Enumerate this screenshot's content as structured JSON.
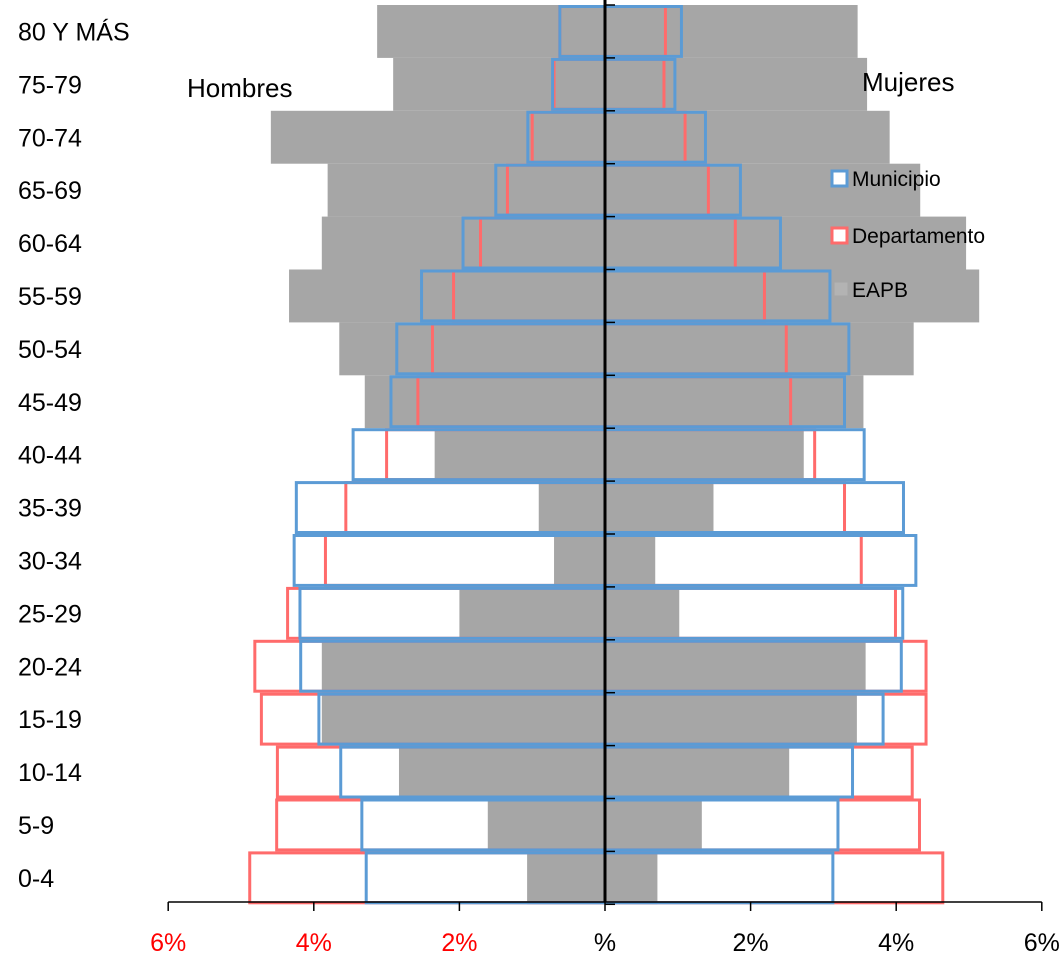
{
  "chart_data": {
    "type": "bar",
    "subtype": "population-pyramid",
    "categories": [
      "0-4",
      "5-9",
      "10-14",
      "15-19",
      "20-24",
      "25-29",
      "30-34",
      "35-39",
      "40-44",
      "45-49",
      "50-54",
      "55-59",
      "60-64",
      "65-69",
      "70-74",
      "75-79",
      "80 Y MÁS"
    ],
    "group_labels": {
      "left": "Hombres",
      "right": "Mujeres"
    },
    "x_ticks": [
      {
        "value": -6,
        "label": "6%"
      },
      {
        "value": -4,
        "label": "4%"
      },
      {
        "value": -2,
        "label": "2%"
      },
      {
        "value": 0,
        "label": "%"
      },
      {
        "value": 2,
        "label": "2%"
      },
      {
        "value": 4,
        "label": "4%"
      },
      {
        "value": 6,
        "label": "6%"
      }
    ],
    "xlim": [
      -6,
      6
    ],
    "legend_position": "right",
    "series": [
      {
        "name": "EAPB",
        "style": "filled",
        "color": "#a6a6a6",
        "men": [
          1.07,
          1.61,
          2.83,
          3.89,
          3.89,
          2.0,
          0.7,
          0.91,
          2.34,
          3.3,
          3.65,
          4.34,
          3.89,
          3.81,
          4.59,
          2.91,
          3.13
        ],
        "women": [
          0.72,
          1.33,
          2.53,
          3.46,
          3.58,
          1.02,
          0.69,
          1.49,
          2.73,
          3.55,
          4.24,
          5.14,
          4.96,
          4.33,
          3.91,
          3.6,
          3.47
        ]
      },
      {
        "name": "Municipio",
        "style": "outline",
        "color": "#5b9bd5",
        "men": [
          3.28,
          3.34,
          3.63,
          3.93,
          4.18,
          4.19,
          4.27,
          4.24,
          3.46,
          2.94,
          2.86,
          2.52,
          1.95,
          1.5,
          1.06,
          0.72,
          0.62
        ],
        "women": [
          3.13,
          3.2,
          3.4,
          3.82,
          4.07,
          4.09,
          4.27,
          4.1,
          3.56,
          3.29,
          3.35,
          3.09,
          2.41,
          1.86,
          1.38,
          0.96,
          1.05
        ]
      },
      {
        "name": "Departamento",
        "style": "outline",
        "color": "#ff6b6b",
        "men": [
          4.88,
          4.51,
          4.5,
          4.72,
          4.81,
          4.36,
          3.84,
          3.56,
          3.0,
          2.57,
          2.37,
          2.08,
          1.71,
          1.34,
          1.0,
          0.7,
          0.62
        ],
        "women": [
          4.64,
          4.32,
          4.22,
          4.41,
          4.41,
          3.99,
          3.52,
          3.29,
          2.88,
          2.55,
          2.49,
          2.19,
          1.79,
          1.42,
          1.1,
          0.81,
          0.83
        ]
      }
    ]
  }
}
